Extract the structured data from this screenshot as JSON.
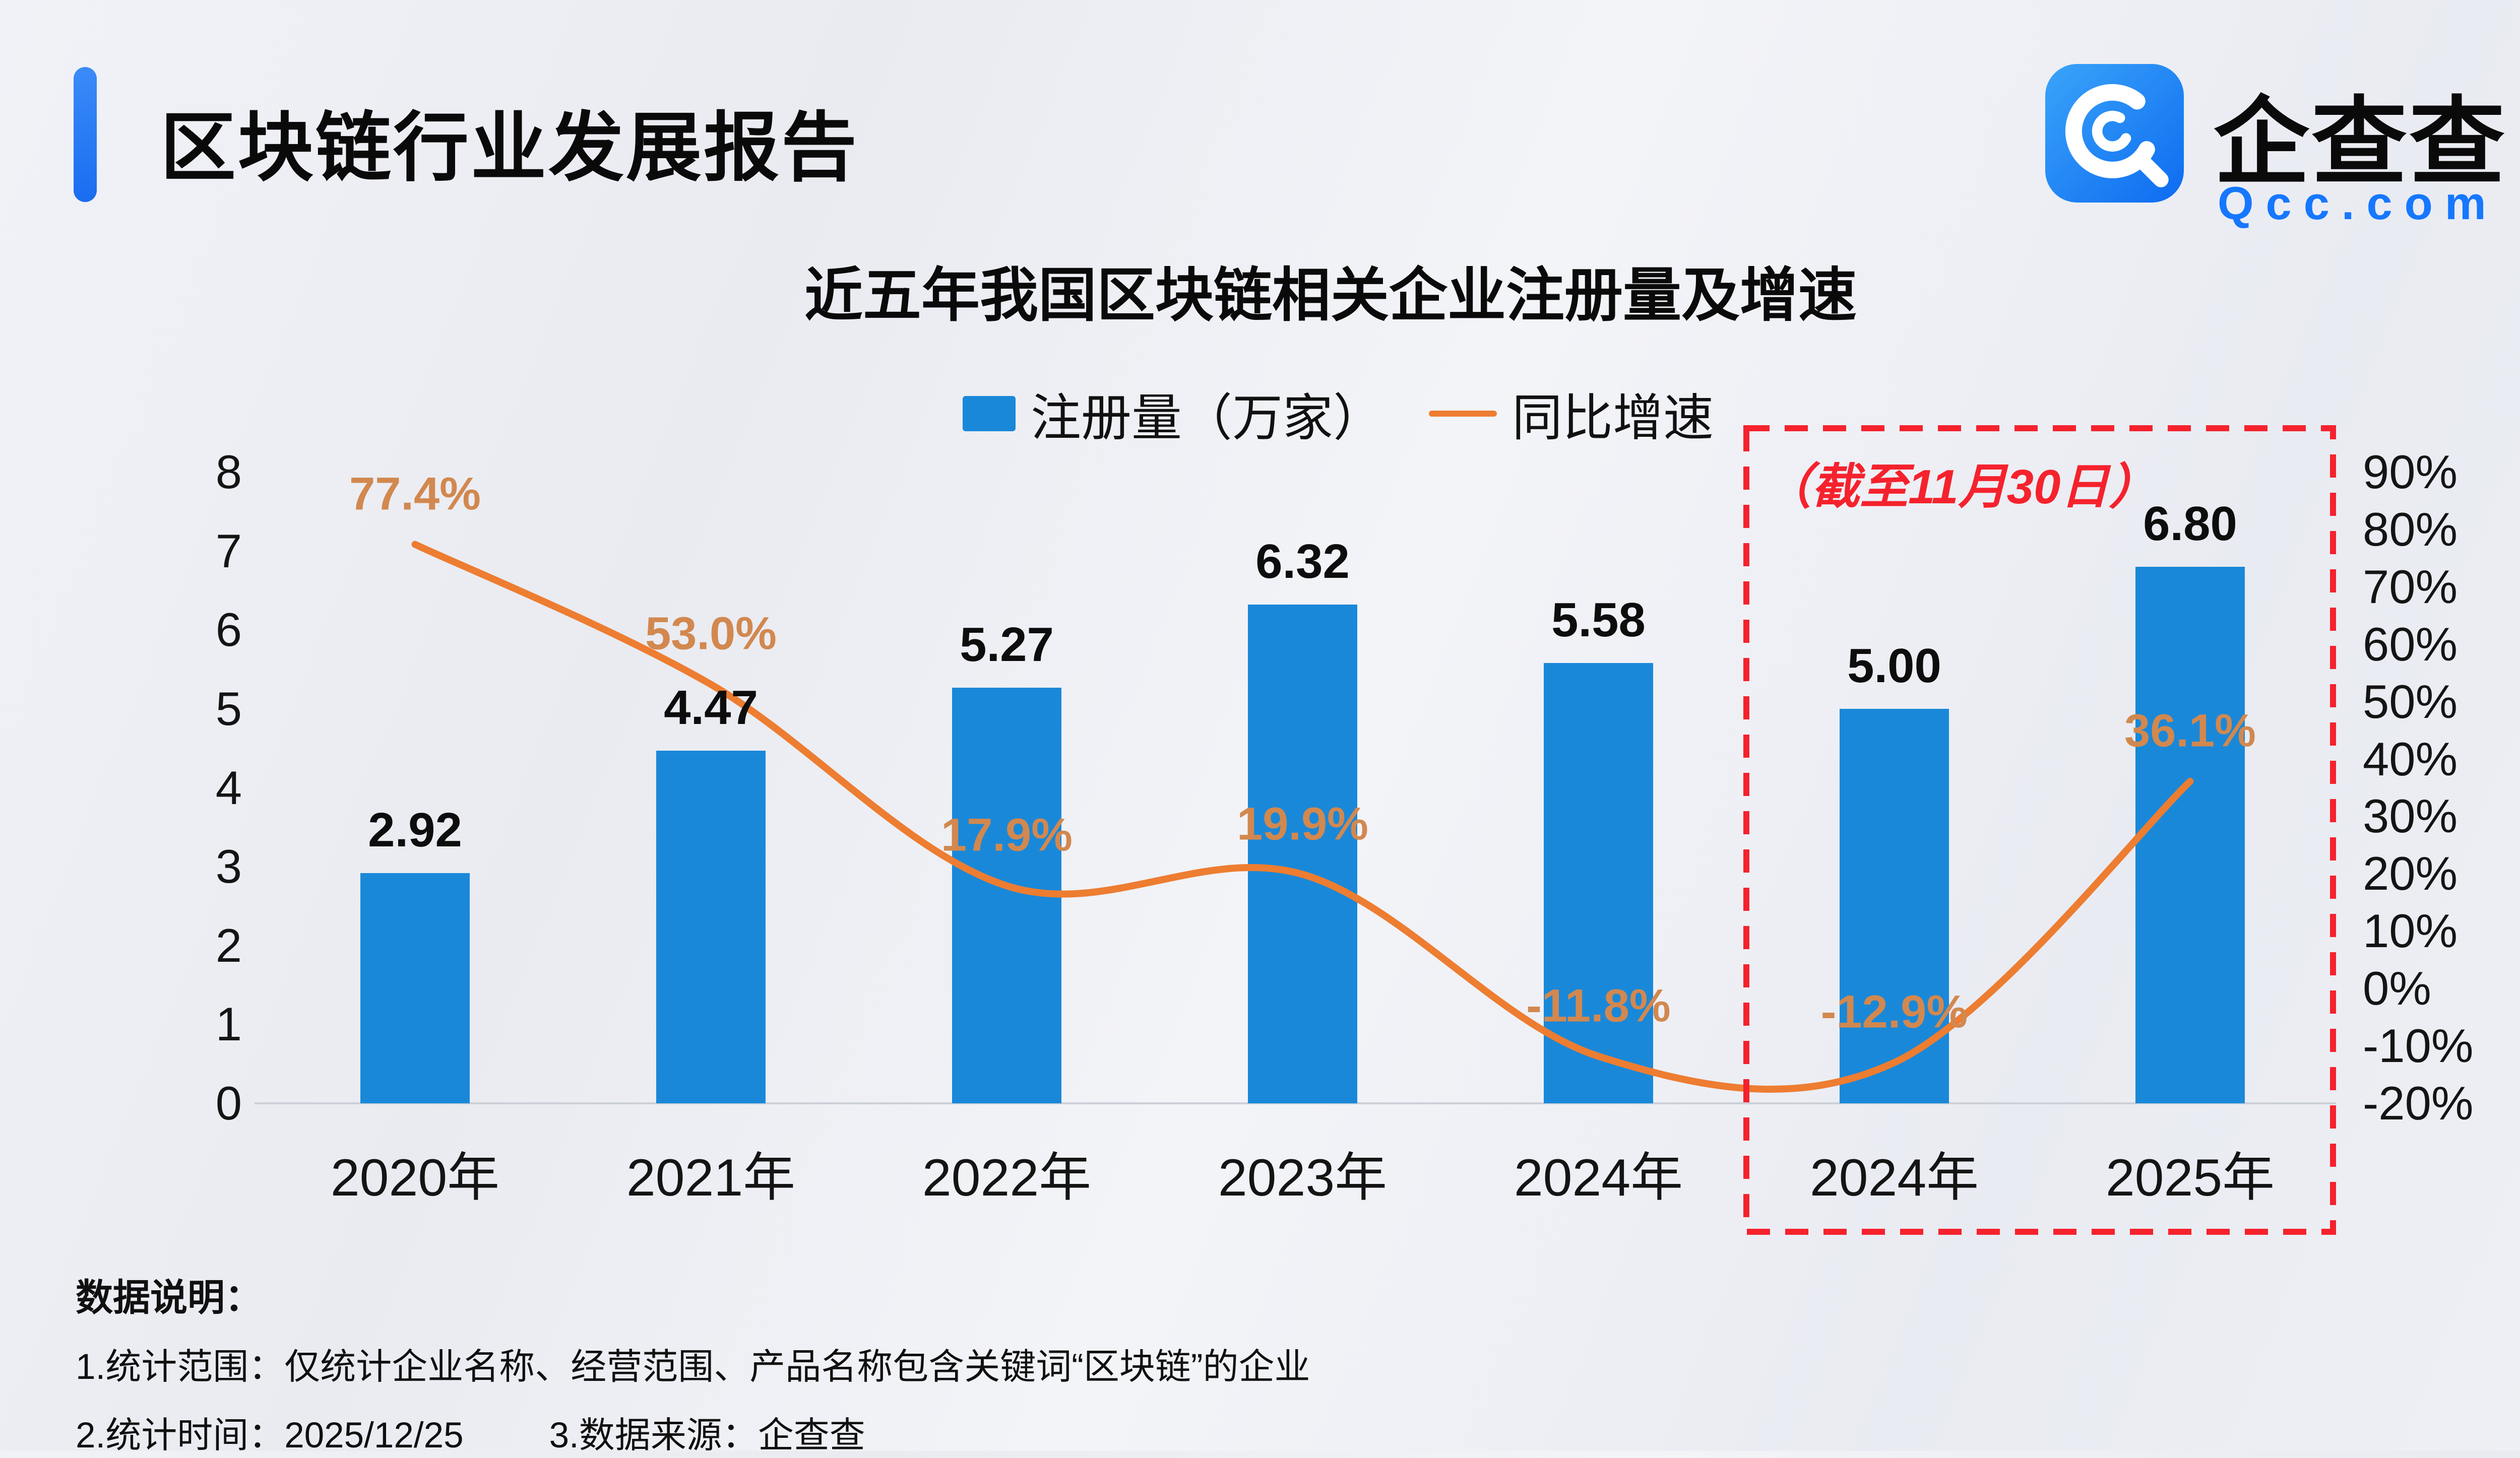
{
  "header": {
    "title": "区块链行业发展报告",
    "accent_color": "#1a6df0"
  },
  "logo": {
    "brand_name": "企查查",
    "domain": "Qcc.com",
    "icon_color": "#1677ff"
  },
  "chart": {
    "title": "近五年我国区块链相关企业注册量及增速",
    "legend": [
      {
        "label": "注册量（万家）",
        "marker": "bar",
        "color": "#1a88d8"
      },
      {
        "label": "同比增速",
        "marker": "line",
        "color": "#ed7d31"
      }
    ],
    "annotation": {
      "label": "（截至11月30日）",
      "color": "#f5222d"
    }
  },
  "chart_data": {
    "type": "bar",
    "title": "近五年我国区块链相关企业注册量及增速",
    "categories": [
      "2020年",
      "2021年",
      "2022年",
      "2023年",
      "2024年",
      "2024年",
      "2025年"
    ],
    "series": [
      {
        "name": "注册量（万家）",
        "type": "bar",
        "axis": "left",
        "color": "#1a88d8",
        "values": [
          2.92,
          4.47,
          5.27,
          6.32,
          5.58,
          5.0,
          6.8
        ],
        "labels": [
          "2.92",
          "4.47",
          "5.27",
          "6.32",
          "5.58",
          "5.00",
          "6.80"
        ]
      },
      {
        "name": "同比增速",
        "type": "line",
        "axis": "right",
        "color": "#ed7d31",
        "label_color": "#d2884f",
        "values": [
          77.4,
          53.0,
          17.9,
          19.9,
          -11.8,
          -12.9,
          36.1
        ],
        "labels": [
          "77.4%",
          "53.0%",
          "17.9%",
          "19.9%",
          "-11.8%",
          "-12.9%",
          "36.1%"
        ]
      }
    ],
    "left_axis": {
      "min": 0,
      "max": 8,
      "ticks": [
        "8",
        "7",
        "6",
        "5",
        "4",
        "3",
        "2",
        "1",
        "0"
      ]
    },
    "right_axis": {
      "min": -20,
      "max": 90,
      "ticks": [
        "90%",
        "80%",
        "70%",
        "60%",
        "50%",
        "40%",
        "30%",
        "20%",
        "10%",
        "0%",
        "-10%",
        "-20%"
      ]
    },
    "highlight_range": {
      "from_index": 5,
      "to_index": 6,
      "label": "（截至11月30日）"
    },
    "legend_position": "top",
    "grid": "off"
  },
  "footer": {
    "heading": "数据说明：",
    "notes": [
      "1.统计范围：仅统计企业名称、经营范围、产品名称包含关键词“区块链”的企业",
      "2.统计时间：2025/12/25",
      "3.数据来源：企查查"
    ]
  }
}
